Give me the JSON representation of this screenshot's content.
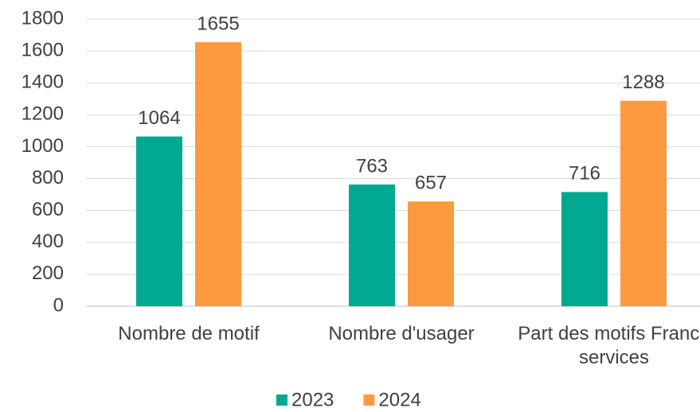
{
  "chart_data": {
    "type": "bar",
    "categories": [
      "Nombre de motif",
      "Nombre d'usager",
      "Part des motifs France services"
    ],
    "series": [
      {
        "name": "2023",
        "color": "#00a98f",
        "values": [
          1064,
          763,
          716
        ]
      },
      {
        "name": "2024",
        "color": "#fd9a3f",
        "values": [
          1655,
          657,
          1288
        ]
      }
    ],
    "ylim": [
      0,
      1800
    ],
    "yticks": [
      0,
      200,
      400,
      600,
      800,
      1000,
      1200,
      1400,
      1600,
      1800
    ],
    "grid": true,
    "legend": "bottom"
  }
}
